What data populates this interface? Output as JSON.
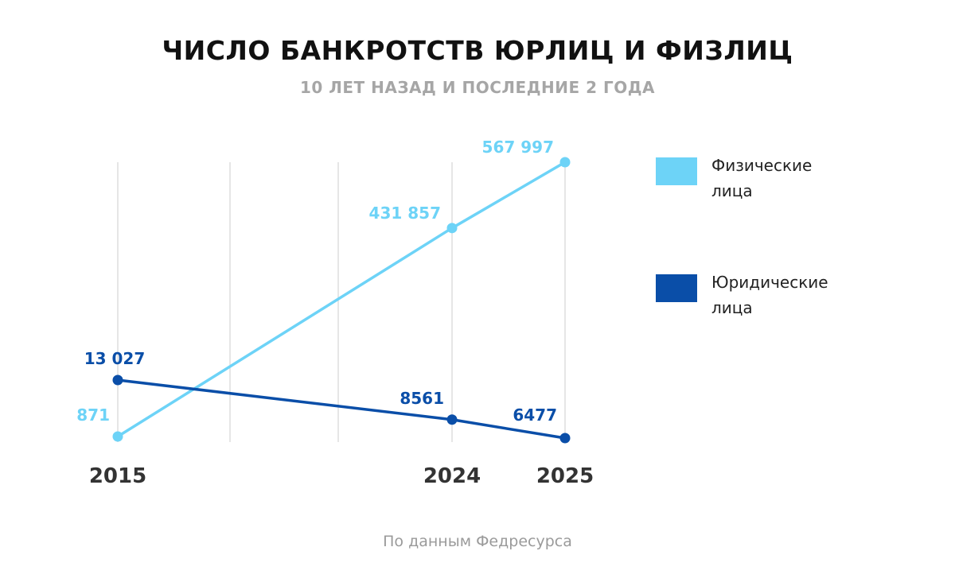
{
  "title": "ЧИСЛО БАНКРОТСТВ ЮРЛИЦ И ФИЗЛИЦ",
  "subtitle": "10 ЛЕТ НАЗАД И ПОСЛЕДНИЕ 2 ГОДА",
  "source": "По данным Федресурса",
  "colors": {
    "individuals": "#6dd3f7",
    "companies": "#0a4ea8",
    "grid": "#cccccc"
  },
  "chart_data": {
    "type": "line",
    "x": [
      "2015",
      "2024",
      "2025"
    ],
    "grid": true,
    "legend_position": "right",
    "series": [
      {
        "name": "Физические лица",
        "values": [
          871,
          431857,
          567997
        ],
        "labels": [
          "871",
          "431 857",
          "567 997"
        ],
        "color": "#6dd3f7"
      },
      {
        "name": "Юридические лица",
        "values": [
          13027,
          8561,
          6477
        ],
        "labels": [
          "13 027",
          "8561",
          "6477"
        ],
        "color": "#0a4ea8"
      }
    ]
  },
  "legend": {
    "items": [
      {
        "line1": "Физические",
        "line2": "лица",
        "color": "#6dd3f7"
      },
      {
        "line1": "Юридические",
        "line2": "лица",
        "color": "#0a4ea8"
      }
    ]
  }
}
